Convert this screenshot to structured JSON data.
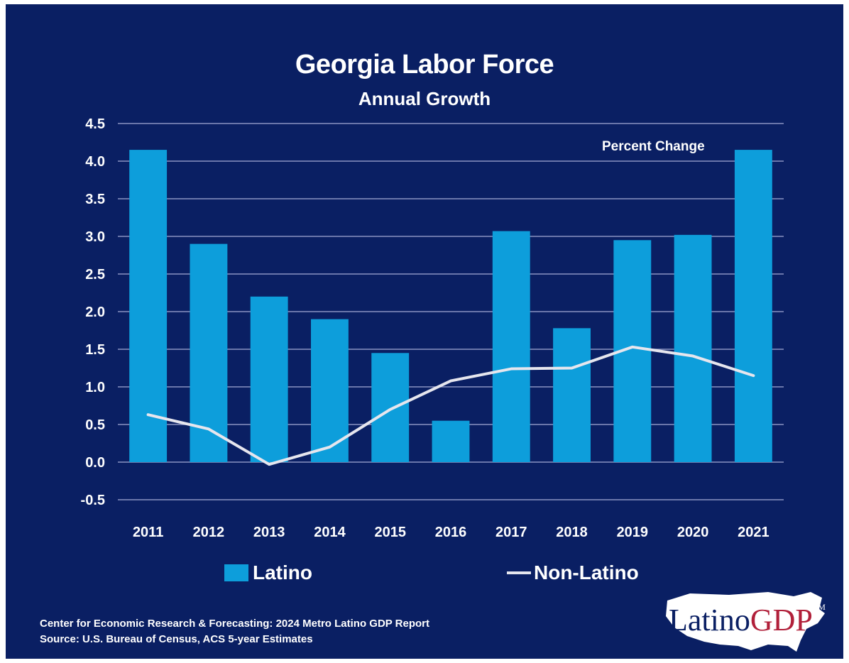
{
  "header": {
    "title": "Georgia Labor Force",
    "subtitle": "Annual Growth"
  },
  "annotation": "Percent Change",
  "legend": {
    "bar_label": "Latino",
    "line_label": "Non-Latino"
  },
  "footer": {
    "line1": "Center for Economic Research & Forecasting: 2024 Metro Latino GDP Report",
    "line2": "Source: U.S. Bureau of Census, ACS 5-year Estimates"
  },
  "logo": {
    "part1": "Latino",
    "part2": "GDP",
    "tm": "TM"
  },
  "colors": {
    "background": "#0a1f63",
    "bar": "#0d9edb",
    "line": "#e6e6ee",
    "grid": "#8a93c2",
    "logo_accent": "#b1203a"
  },
  "chart_data": {
    "type": "bar",
    "title": "Georgia Labor Force",
    "subtitle": "Annual Growth",
    "categories": [
      "2011",
      "2012",
      "2013",
      "2014",
      "2015",
      "2016",
      "2017",
      "2018",
      "2019",
      "2020",
      "2021"
    ],
    "series": [
      {
        "name": "Latino",
        "type": "bar",
        "values": [
          4.15,
          2.9,
          2.2,
          1.9,
          1.45,
          0.55,
          3.07,
          1.78,
          2.95,
          3.02,
          4.15
        ]
      },
      {
        "name": "Non-Latino",
        "type": "line",
        "values": [
          0.63,
          0.44,
          -0.03,
          0.2,
          0.7,
          1.08,
          1.24,
          1.25,
          1.53,
          1.41,
          1.15
        ]
      }
    ],
    "ylim": [
      -0.5,
      4.5
    ],
    "yticks": [
      "4.5",
      "4.0",
      "3.5",
      "3.0",
      "2.5",
      "2.0",
      "1.5",
      "1.0",
      "0.5",
      "0.0",
      "-0.5"
    ],
    "grid": true,
    "legend_position": "bottom"
  }
}
